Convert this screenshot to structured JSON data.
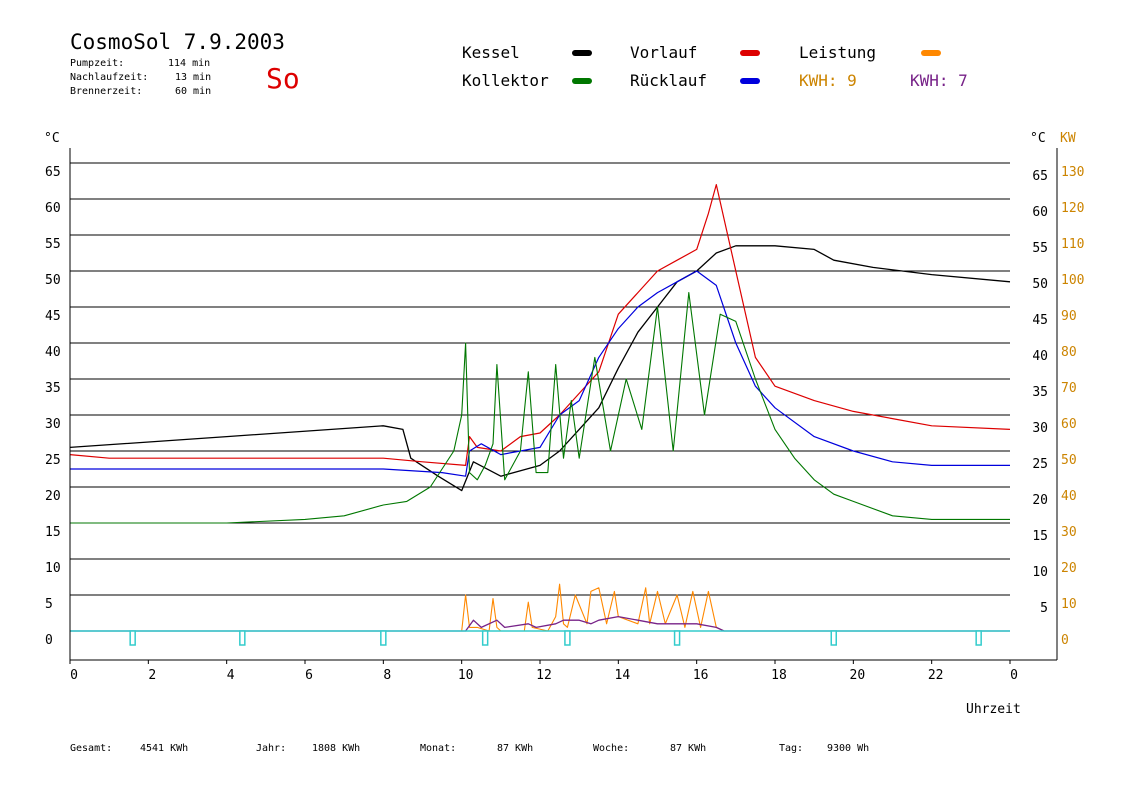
{
  "header": {
    "title": "CosmoSol 7.9.2003",
    "day": "So",
    "pump_label": "Pumpzeit:",
    "pump_value": "114 min",
    "nachlauf_label": "Nachlaufzeit:",
    "nachlauf_value": "13 min",
    "brenner_label": "Brennerzeit:",
    "brenner_value": "60 min"
  },
  "legend": [
    {
      "label": "Kessel",
      "color": "#000000"
    },
    {
      "label": "Vorlauf",
      "color": "#dd0000"
    },
    {
      "label": "Leistung",
      "color": "#ff8800"
    },
    {
      "label": "Kollektor",
      "color": "#007700"
    },
    {
      "label": "Rücklauf",
      "color": "#0000dd"
    }
  ],
  "kwh_orange": "KWH: 9",
  "kwh_purple": "KWH: 7",
  "colors": {
    "kessel": "#000000",
    "vorlauf": "#dd0000",
    "leistung": "#ff8800",
    "kollektor": "#007700",
    "ruecklauf": "#0000dd",
    "pump": "#33cccc",
    "kwh_orange": "#cc8400",
    "kwh_purple": "#772288",
    "axis_right2": "#cc8400"
  },
  "axes": {
    "y_left_unit": "°C",
    "y_right_unit": "°C",
    "y_right2_unit": "KW",
    "x_label": "Uhrzeit"
  },
  "footer": {
    "gesamt_label": "Gesamt:",
    "gesamt_value": "4541 KWh",
    "jahr_label": "Jahr:",
    "jahr_value": "1808 KWh",
    "monat_label": "Monat:",
    "monat_value": "87 KWh",
    "woche_label": "Woche:",
    "woche_value": "87 KWh",
    "tag_label": "Tag:",
    "tag_value": "9300 Wh"
  },
  "chart_data": {
    "type": "line",
    "x_ticks": [
      "0",
      "2",
      "4",
      "6",
      "8",
      "10",
      "12",
      "14",
      "16",
      "18",
      "20",
      "22",
      "0"
    ],
    "xlim": [
      0,
      24
    ],
    "y_left_ticks": [
      0,
      5,
      10,
      15,
      20,
      25,
      30,
      35,
      40,
      45,
      50,
      55,
      60,
      65
    ],
    "y_right_ticks": [
      5,
      10,
      15,
      20,
      25,
      30,
      35,
      40,
      45,
      50,
      55,
      60,
      65
    ],
    "y_right2_ticks": [
      0,
      10,
      20,
      30,
      40,
      50,
      60,
      70,
      80,
      90,
      100,
      110,
      120,
      130
    ],
    "ylim": [
      0,
      70
    ],
    "grid": true,
    "series": [
      {
        "name": "Kessel",
        "key": "kessel",
        "x": [
          0,
          4,
          8,
          8.5,
          8.7,
          9.4,
          10.0,
          10.3,
          11.0,
          12.0,
          12.5,
          13.0,
          13.5,
          14.0,
          14.5,
          15.0,
          15.5,
          16.0,
          16.5,
          17.0,
          18.0,
          19.0,
          19.5,
          20.5,
          22.0,
          24.0
        ],
        "y": [
          25.5,
          27.0,
          28.5,
          28.0,
          24.0,
          21.5,
          19.5,
          23.5,
          21.5,
          23.0,
          25.0,
          28.0,
          31.0,
          36.5,
          41.5,
          45.0,
          48.5,
          50.0,
          52.5,
          53.5,
          53.5,
          53.0,
          51.5,
          50.5,
          49.5,
          48.5
        ]
      },
      {
        "name": "Vorlauf",
        "key": "vorlauf",
        "x": [
          0,
          1,
          4,
          8,
          9,
          10.1,
          10.2,
          10.4,
          11.0,
          11.5,
          12.0,
          12.5,
          13.0,
          13.5,
          14.0,
          14.5,
          15.0,
          15.5,
          16.0,
          16.3,
          16.5,
          17.0,
          17.5,
          18.0,
          19.0,
          20.0,
          21.0,
          22.0,
          24.0
        ],
        "y": [
          24.5,
          24.0,
          24.0,
          24.0,
          23.5,
          23.0,
          27.0,
          25.5,
          25.0,
          27.0,
          27.5,
          30.0,
          33.0,
          36.0,
          44.0,
          47.0,
          50.0,
          51.5,
          53.0,
          58.0,
          62.0,
          50.0,
          38.0,
          34.0,
          32.0,
          30.5,
          29.5,
          28.5,
          28.0
        ]
      },
      {
        "name": "Rücklauf",
        "key": "ruecklauf",
        "x": [
          0,
          4,
          8,
          9.5,
          10.1,
          10.2,
          10.5,
          11.0,
          11.5,
          12.0,
          12.5,
          13.0,
          13.5,
          14.0,
          14.5,
          15.0,
          15.5,
          16.0,
          16.5,
          17.0,
          17.5,
          18.0,
          19.0,
          20.0,
          21.0,
          22.0,
          24.0
        ],
        "y": [
          22.5,
          22.5,
          22.5,
          22.0,
          21.5,
          25.0,
          26.0,
          24.5,
          25.0,
          25.5,
          30.0,
          32.0,
          38.0,
          42.0,
          45.0,
          47.0,
          48.5,
          50.0,
          48.0,
          40.0,
          34.0,
          31.0,
          27.0,
          25.0,
          23.5,
          23.0,
          23.0
        ]
      },
      {
        "name": "Kollektor",
        "key": "kollektor",
        "x": [
          0,
          2,
          4,
          6,
          7,
          8,
          8.6,
          9.2,
          9.8,
          10.0,
          10.1,
          10.2,
          10.4,
          10.6,
          10.8,
          10.9,
          11.1,
          11.5,
          11.7,
          11.9,
          12.2,
          12.4,
          12.6,
          12.8,
          13.0,
          13.4,
          13.8,
          14.2,
          14.6,
          15.0,
          15.4,
          15.8,
          16.2,
          16.6,
          17.0,
          17.5,
          18.0,
          18.5,
          19.0,
          19.5,
          20.0,
          21.0,
          22.0,
          24.0
        ],
        "y": [
          15.0,
          15.0,
          15.0,
          15.5,
          16.0,
          17.5,
          18.0,
          20.0,
          25.0,
          30.0,
          40.0,
          22.0,
          21.0,
          23.0,
          26.0,
          37.0,
          21.0,
          25.0,
          36.0,
          22.0,
          22.0,
          37.0,
          24.0,
          32.0,
          24.0,
          38.0,
          25.0,
          35.0,
          28.0,
          45.0,
          25.0,
          47.0,
          30.0,
          44.0,
          43.0,
          35.0,
          28.0,
          24.0,
          21.0,
          19.0,
          18.0,
          16.0,
          15.5,
          15.5
        ]
      },
      {
        "name": "Leistung",
        "key": "leistung",
        "x": [
          0,
          10.0,
          10.1,
          10.2,
          10.4,
          10.7,
          10.8,
          10.9,
          11.0,
          11.6,
          11.7,
          11.8,
          12.2,
          12.4,
          12.5,
          12.6,
          12.7,
          12.9,
          13.2,
          13.3,
          13.5,
          13.7,
          13.9,
          14.0,
          14.5,
          14.7,
          14.8,
          15.0,
          15.2,
          15.5,
          15.7,
          15.9,
          16.1,
          16.3,
          16.5,
          16.7,
          24.0
        ],
        "y": [
          0,
          0,
          5.0,
          0.5,
          0.5,
          0,
          4.5,
          0.5,
          0,
          0,
          4.0,
          0.5,
          0,
          2.0,
          6.5,
          1.0,
          0.5,
          5.0,
          1.0,
          5.5,
          6.0,
          1.0,
          5.5,
          2.0,
          1.0,
          6.0,
          1.0,
          5.5,
          1.0,
          5.0,
          0.5,
          5.5,
          0.5,
          5.5,
          0.5,
          0,
          0
        ]
      },
      {
        "name": "KWH-purple",
        "key": "kwh_purple",
        "x": [
          0,
          10.1,
          10.3,
          10.5,
          10.9,
          11.1,
          11.7,
          11.9,
          12.4,
          12.6,
          13.0,
          13.3,
          13.5,
          14.0,
          14.5,
          15.0,
          15.5,
          16.0,
          16.5,
          16.7,
          24.0
        ],
        "y": [
          0,
          0,
          1.5,
          0.5,
          1.5,
          0.5,
          1.0,
          0.5,
          1.0,
          1.5,
          1.5,
          1.0,
          1.5,
          2.0,
          1.5,
          1.0,
          1.0,
          1.0,
          0.5,
          0,
          0
        ]
      }
    ],
    "pump_pulses": [
      1.6,
      4.4,
      8.0,
      10.6,
      12.7,
      15.5,
      19.5,
      23.2
    ]
  }
}
